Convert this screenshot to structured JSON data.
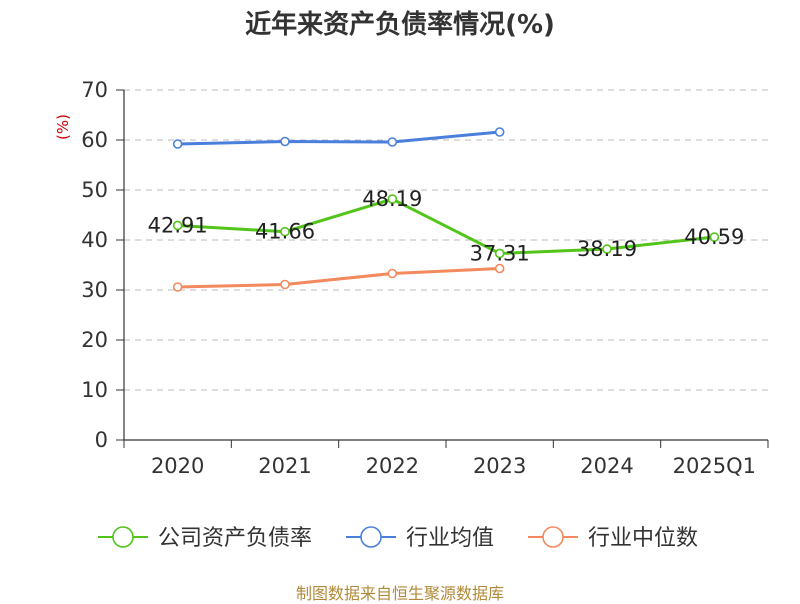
{
  "chart_data": {
    "type": "line",
    "title": "近年来资产负债率情况(%)",
    "ylabel": "(%)",
    "xlabel": "",
    "ylim": [
      0,
      70
    ],
    "yticks": [
      0,
      10,
      20,
      30,
      40,
      50,
      60,
      70
    ],
    "categories": [
      "2020",
      "2021",
      "2022",
      "2023",
      "2024",
      "2025Q1"
    ],
    "grid": true,
    "legend_position": "bottom",
    "series": [
      {
        "name": "公司资产负债率",
        "color": "#52c41a",
        "values": [
          42.91,
          41.66,
          48.19,
          37.31,
          38.19,
          40.59
        ],
        "data_labels": [
          "42.91",
          "41.66",
          "48.19",
          "37.31",
          "38.19",
          "40.59"
        ]
      },
      {
        "name": "行业均值",
        "color": "#4a7fdc",
        "values": [
          59.2,
          59.7,
          59.6,
          61.6,
          null,
          null
        ]
      },
      {
        "name": "行业中位数",
        "color": "#f28a5e",
        "values": [
          30.6,
          31.1,
          33.3,
          34.3,
          null,
          null
        ]
      }
    ]
  },
  "footer": {
    "source": "制图数据来自恒生聚源数据库"
  },
  "colors": {
    "unit_label": "#cc0000",
    "axis": "#333333",
    "grid": "#bbbbbb",
    "footer": "#b08a3a"
  }
}
